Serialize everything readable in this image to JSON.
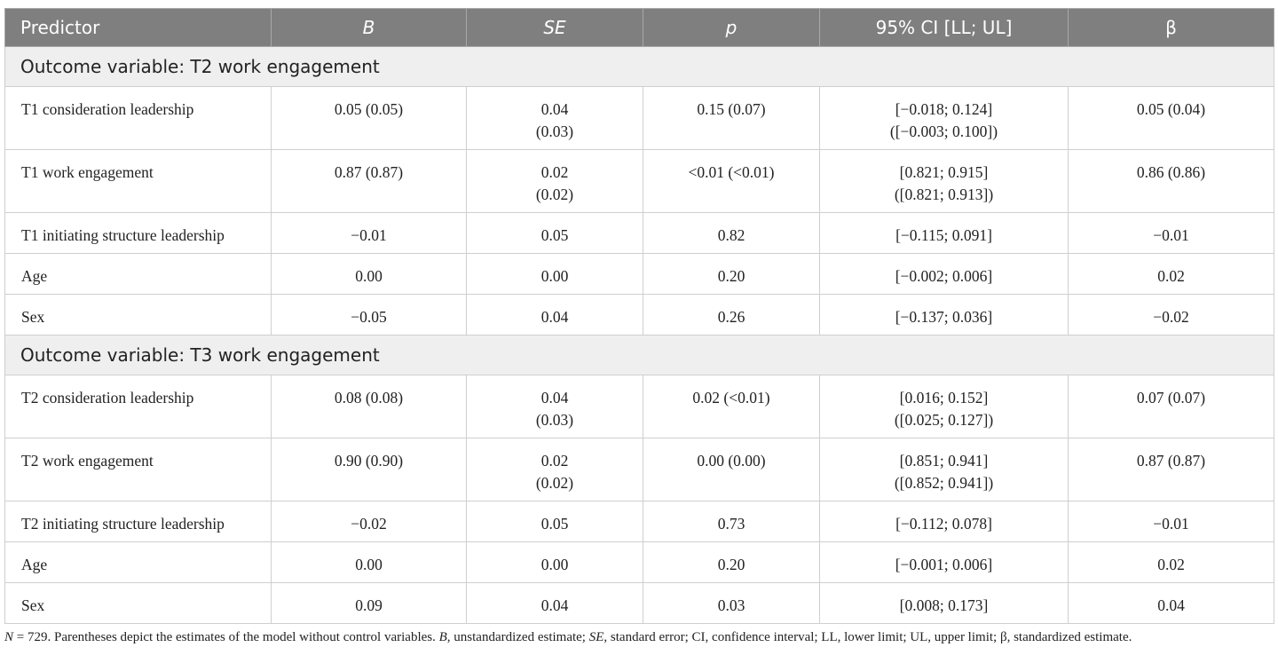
{
  "headers": [
    "Predictor",
    "B",
    "SE",
    "p",
    "95% CI [LL; UL]",
    "β"
  ],
  "groups": [
    {
      "title": "Outcome variable: T2 work engagement",
      "rows": [
        {
          "predictor": "T1 consideration leadership",
          "B": "0.05 (0.05)",
          "SE_1": "0.04",
          "SE_2": "(0.03)",
          "p": "0.15 (0.07)",
          "CI_1": "[−0.018; 0.124]",
          "CI_2": "([−0.003; 0.100])",
          "beta": "0.05 (0.04)"
        },
        {
          "predictor": "T1 work engagement",
          "B": "0.87 (0.87)",
          "SE_1": "0.02",
          "SE_2": "(0.02)",
          "p": "<0.01 (<0.01)",
          "CI_1": "[0.821; 0.915]",
          "CI_2": "([0.821; 0.913])",
          "beta": "0.86 (0.86)"
        },
        {
          "predictor": "T1 initiating structure leadership",
          "B": "−0.01",
          "SE_1": "0.05",
          "p": "0.82",
          "CI_1": "[−0.115; 0.091]",
          "beta": "−0.01"
        },
        {
          "predictor": "Age",
          "B": "0.00",
          "SE_1": "0.00",
          "p": "0.20",
          "CI_1": "[−0.002; 0.006]",
          "beta": "0.02"
        },
        {
          "predictor": "Sex",
          "B": "−0.05",
          "SE_1": "0.04",
          "p": "0.26",
          "CI_1": "[−0.137; 0.036]",
          "beta": "−0.02"
        }
      ]
    },
    {
      "title": "Outcome variable: T3 work engagement",
      "rows": [
        {
          "predictor": "T2 consideration leadership",
          "B": "0.08 (0.08)",
          "SE_1": "0.04",
          "SE_2": "(0.03)",
          "p": "0.02 (<0.01)",
          "CI_1": "[0.016; 0.152]",
          "CI_2": "([0.025; 0.127])",
          "beta": "0.07 (0.07)"
        },
        {
          "predictor": "T2 work engagement",
          "B": "0.90 (0.90)",
          "SE_1": "0.02",
          "SE_2": "(0.02)",
          "p": "0.00 (0.00)",
          "CI_1": "[0.851; 0.941]",
          "CI_2": "([0.852; 0.941])",
          "beta": "0.87 (0.87)"
        },
        {
          "predictor": "T2 initiating structure leadership",
          "B": "−0.02",
          "SE_1": "0.05",
          "p": "0.73",
          "CI_1": "[−0.112; 0.078]",
          "beta": "−0.01"
        },
        {
          "predictor": "Age",
          "B": "0.00",
          "SE_1": "0.00",
          "p": "0.20",
          "CI_1": "[−0.001; 0.006]",
          "beta": "0.02"
        },
        {
          "predictor": "Sex",
          "B": "0.09",
          "SE_1": "0.04",
          "p": "0.03",
          "CI_1": "[0.008; 0.173]",
          "beta": "0.04"
        }
      ]
    }
  ],
  "note": {
    "n": "N",
    "n_rest": " = 729. Parentheses depict the estimates of the model without control variables. ",
    "b": "B",
    "b_rest": ", unstandardized estimate; ",
    "se": "SE",
    "se_rest": ", standard error; CI, confidence interval; LL, lower limit; UL, upper limit; β, standardized estimate."
  }
}
